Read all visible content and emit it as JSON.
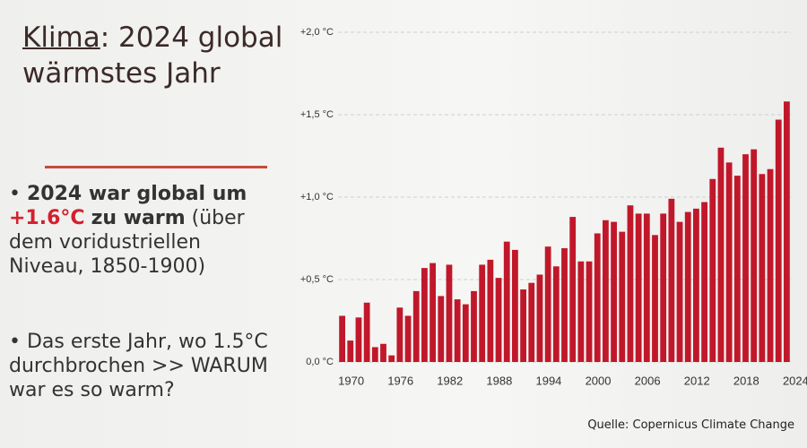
{
  "slide": {
    "title": {
      "underlined": "Klima",
      "line1": ": 2024 global",
      "line2": "wärmstes Jahr"
    },
    "bullet1": {
      "bold": "2024 war global um",
      "highlight": "+1.6°C",
      "bold2": "zu warm",
      "rest": "(über dem voridustriellen Niveau, 1850-1900)"
    },
    "bullet2": "Das erste Jahr, wo 1.5°C durchbrochen >> WARUM war es so warm?",
    "source": "Quelle: Copernicus Climate Change"
  },
  "chart_data": {
    "type": "bar",
    "categories": [
      "1970",
      null,
      null,
      null,
      null,
      null,
      "1976",
      null,
      null,
      null,
      null,
      null,
      "1982",
      null,
      null,
      null,
      null,
      null,
      "1988",
      null,
      null,
      null,
      null,
      null,
      "1994",
      null,
      null,
      null,
      null,
      null,
      "2000",
      null,
      null,
      null,
      null,
      null,
      "2006",
      null,
      null,
      null,
      null,
      null,
      "2012",
      null,
      null,
      null,
      null,
      null,
      "2018",
      null,
      null,
      null,
      null,
      null,
      "2024"
    ],
    "values": [
      0.28,
      0.13,
      0.27,
      0.36,
      0.09,
      0.11,
      0.04,
      0.33,
      0.28,
      0.43,
      0.57,
      0.6,
      0.4,
      0.59,
      0.38,
      0.35,
      0.43,
      0.59,
      0.62,
      0.51,
      0.73,
      0.68,
      0.44,
      0.48,
      0.53,
      0.7,
      0.58,
      0.69,
      0.88,
      0.61,
      0.61,
      0.78,
      0.86,
      0.85,
      0.79,
      0.95,
      0.9,
      0.9,
      0.77,
      0.9,
      0.99,
      0.85,
      0.91,
      0.93,
      0.97,
      1.11,
      1.3,
      1.21,
      1.13,
      1.26,
      1.29,
      1.14,
      1.17,
      1.47,
      1.58
    ],
    "color": "#c0182a",
    "ylim": [
      0,
      2.0
    ],
    "yticks": [
      {
        "value": 0,
        "label": "0,0 °C"
      },
      {
        "value": 0.5,
        "label": "+0,5 °C"
      },
      {
        "value": 1.0,
        "label": "+1,0 °C"
      },
      {
        "value": 1.5,
        "label": "+1,5 °C"
      },
      {
        "value": 2.0,
        "label": "+2,0 °C"
      }
    ],
    "grid": true
  }
}
